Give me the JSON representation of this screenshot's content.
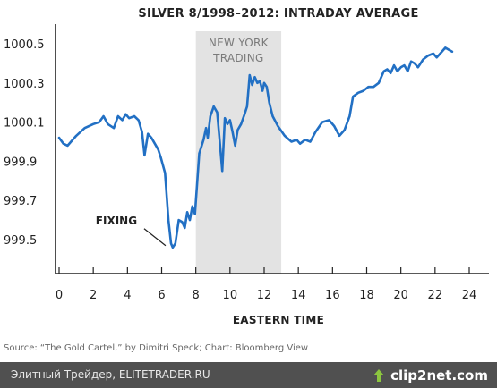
{
  "chart_data": {
    "type": "line",
    "title": "SILVER 8/1998–2012: INTRADAY AVERAGE",
    "xlabel": "EASTERN TIME",
    "ylabel": "",
    "xlim": [
      0,
      24
    ],
    "ylim": [
      999.4,
      1000.6
    ],
    "x_ticks": [
      0,
      2,
      4,
      6,
      8,
      10,
      12,
      14,
      16,
      18,
      20,
      22,
      24
    ],
    "y_ticks": [
      999.5,
      999.7,
      999.9,
      1000.1,
      1000.3,
      1000.5
    ],
    "y_tick_labels": [
      "999.5",
      "999.7",
      "999.9",
      "1000.1",
      "1000.3",
      "1000.5"
    ],
    "grid": false,
    "shaded_region": {
      "x_start": 8.0,
      "x_end": 13.0,
      "label_line1": "NEW YORK",
      "label_line2": "TRADING",
      "color": "#e3e3e3"
    },
    "annotation": {
      "text": "FIXING",
      "x": 6.6,
      "y": 999.46
    },
    "series": [
      {
        "color": "#2270c4",
        "points": [
          [
            0.0,
            1000.02
          ],
          [
            0.25,
            999.99
          ],
          [
            0.5,
            999.98
          ],
          [
            1.0,
            1000.03
          ],
          [
            1.5,
            1000.07
          ],
          [
            2.0,
            1000.09
          ],
          [
            2.35,
            1000.1
          ],
          [
            2.6,
            1000.13
          ],
          [
            2.85,
            1000.09
          ],
          [
            3.2,
            1000.07
          ],
          [
            3.45,
            1000.13
          ],
          [
            3.7,
            1000.11
          ],
          [
            3.9,
            1000.14
          ],
          [
            4.1,
            1000.12
          ],
          [
            4.4,
            1000.13
          ],
          [
            4.65,
            1000.11
          ],
          [
            4.85,
            1000.05
          ],
          [
            5.0,
            999.93
          ],
          [
            5.2,
            1000.04
          ],
          [
            5.4,
            1000.02
          ],
          [
            5.6,
            999.99
          ],
          [
            5.8,
            999.96
          ],
          [
            5.95,
            999.92
          ],
          [
            6.2,
            999.84
          ],
          [
            6.4,
            999.6
          ],
          [
            6.55,
            999.48
          ],
          [
            6.65,
            999.46
          ],
          [
            6.8,
            999.48
          ],
          [
            7.0,
            999.6
          ],
          [
            7.2,
            999.59
          ],
          [
            7.35,
            999.56
          ],
          [
            7.5,
            999.64
          ],
          [
            7.65,
            999.6
          ],
          [
            7.8,
            999.67
          ],
          [
            7.95,
            999.63
          ],
          [
            8.2,
            999.94
          ],
          [
            8.45,
            1000.01
          ],
          [
            8.6,
            1000.07
          ],
          [
            8.7,
            1000.02
          ],
          [
            8.85,
            1000.13
          ],
          [
            9.05,
            1000.18
          ],
          [
            9.25,
            1000.15
          ],
          [
            9.4,
            1000.0
          ],
          [
            9.55,
            999.85
          ],
          [
            9.7,
            1000.12
          ],
          [
            9.85,
            1000.09
          ],
          [
            10.0,
            1000.11
          ],
          [
            10.15,
            1000.05
          ],
          [
            10.3,
            999.98
          ],
          [
            10.45,
            1000.06
          ],
          [
            10.65,
            1000.09
          ],
          [
            10.85,
            1000.14
          ],
          [
            11.0,
            1000.18
          ],
          [
            11.15,
            1000.34
          ],
          [
            11.3,
            1000.29
          ],
          [
            11.45,
            1000.33
          ],
          [
            11.6,
            1000.3
          ],
          [
            11.75,
            1000.31
          ],
          [
            11.9,
            1000.26
          ],
          [
            12.0,
            1000.3
          ],
          [
            12.15,
            1000.28
          ],
          [
            12.3,
            1000.2
          ],
          [
            12.5,
            1000.13
          ],
          [
            12.8,
            1000.08
          ],
          [
            13.2,
            1000.03
          ],
          [
            13.6,
            1000.0
          ],
          [
            13.9,
            1000.01
          ],
          [
            14.1,
            999.99
          ],
          [
            14.4,
            1000.01
          ],
          [
            14.7,
            1000.0
          ],
          [
            15.0,
            1000.05
          ],
          [
            15.4,
            1000.1
          ],
          [
            15.8,
            1000.11
          ],
          [
            16.1,
            1000.08
          ],
          [
            16.4,
            1000.03
          ],
          [
            16.7,
            1000.06
          ],
          [
            17.0,
            1000.13
          ],
          [
            17.2,
            1000.23
          ],
          [
            17.5,
            1000.25
          ],
          [
            17.8,
            1000.26
          ],
          [
            18.1,
            1000.28
          ],
          [
            18.4,
            1000.28
          ],
          [
            18.7,
            1000.3
          ],
          [
            19.0,
            1000.36
          ],
          [
            19.2,
            1000.37
          ],
          [
            19.4,
            1000.35
          ],
          [
            19.6,
            1000.39
          ],
          [
            19.8,
            1000.36
          ],
          [
            20.0,
            1000.38
          ],
          [
            20.2,
            1000.39
          ],
          [
            20.4,
            1000.36
          ],
          [
            20.6,
            1000.41
          ],
          [
            20.8,
            1000.4
          ],
          [
            21.0,
            1000.38
          ],
          [
            21.3,
            1000.42
          ],
          [
            21.6,
            1000.44
          ],
          [
            21.9,
            1000.45
          ],
          [
            22.1,
            1000.43
          ],
          [
            22.4,
            1000.46
          ],
          [
            22.6,
            1000.48
          ],
          [
            22.8,
            1000.47
          ],
          [
            23.0,
            1000.46
          ]
        ]
      }
    ],
    "source": "Source: “The Gold Cartel,” by Dimitri Speck; Chart: Bloomberg View"
  },
  "footer": {
    "caption": "Элитный Трейдер, ELITETRADER.RU",
    "brand": "clip2net.com",
    "brand_icon": "clip2net-logo-icon"
  }
}
